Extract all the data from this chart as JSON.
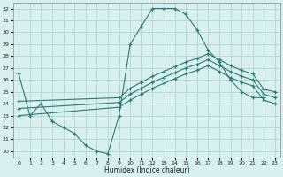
{
  "xlabel": "Humidex (Indice chaleur)",
  "xlim": [
    -0.5,
    23.5
  ],
  "ylim": [
    19.5,
    32.5
  ],
  "yticks": [
    20,
    21,
    22,
    23,
    24,
    25,
    26,
    27,
    28,
    29,
    30,
    31,
    32
  ],
  "xticks": [
    0,
    1,
    2,
    3,
    4,
    5,
    6,
    7,
    8,
    9,
    10,
    11,
    12,
    13,
    14,
    15,
    16,
    17,
    18,
    19,
    20,
    21,
    22,
    23
  ],
  "background_color": "#d8f0ee",
  "grid_color": "#aacfcc",
  "line_color": "#2e7b74",
  "figsize": [
    3.2,
    2.0
  ],
  "dpi": 100,
  "line_zigzag": {
    "x": [
      0,
      1,
      2,
      3,
      4,
      5,
      6,
      7,
      8,
      9,
      10,
      11,
      12,
      13,
      14,
      15,
      16,
      17,
      18,
      19,
      20,
      21,
      22
    ],
    "y": [
      26.5,
      23.0,
      24.0,
      22.5,
      22.0,
      21.5,
      20.5,
      20.0,
      19.8,
      23.0,
      29.0,
      30.5,
      32.0,
      32.0,
      32.0,
      31.5,
      30.2,
      28.5,
      27.5,
      26.0,
      25.0,
      24.5,
      24.5
    ]
  },
  "line_top": {
    "x": [
      0,
      9,
      10,
      11,
      12,
      13,
      14,
      15,
      16,
      17,
      18,
      19,
      20,
      21,
      22,
      23
    ],
    "y": [
      24.2,
      24.5,
      25.3,
      25.8,
      26.3,
      26.7,
      27.1,
      27.5,
      27.8,
      28.2,
      27.7,
      27.2,
      26.8,
      26.5,
      25.2,
      25.0
    ]
  },
  "line_mid": {
    "x": [
      0,
      9,
      10,
      11,
      12,
      13,
      14,
      15,
      16,
      17,
      18,
      19,
      20,
      21,
      22,
      23
    ],
    "y": [
      23.6,
      24.1,
      24.8,
      25.3,
      25.8,
      26.2,
      26.6,
      27.0,
      27.3,
      27.7,
      27.2,
      26.7,
      26.3,
      26.0,
      24.8,
      24.5
    ]
  },
  "line_bot": {
    "x": [
      0,
      9,
      10,
      11,
      12,
      13,
      14,
      15,
      16,
      17,
      18,
      19,
      20,
      21,
      22,
      23
    ],
    "y": [
      23.0,
      23.7,
      24.3,
      24.8,
      25.3,
      25.7,
      26.1,
      26.5,
      26.8,
      27.2,
      26.7,
      26.2,
      25.8,
      25.5,
      24.3,
      24.0
    ]
  }
}
